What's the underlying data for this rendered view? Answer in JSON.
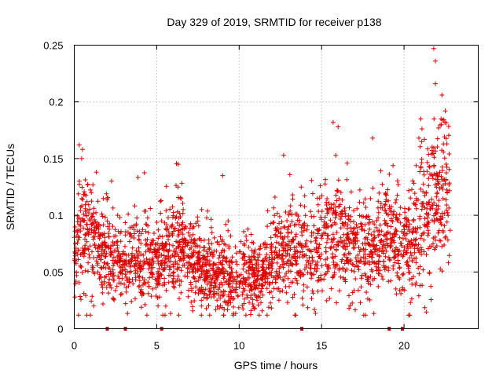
{
  "chart_data": {
    "type": "scatter",
    "title": "Day 329 of 2019, SRMTID for receiver p138",
    "xlabel": "GPS time / hours",
    "ylabel": "SRMTID / TECUs",
    "xlim": [
      0,
      24.5
    ],
    "ylim": [
      0,
      0.25
    ],
    "x_ticks": [
      {
        "value": 0,
        "label": "0"
      },
      {
        "value": 5,
        "label": "5"
      },
      {
        "value": 10,
        "label": "10"
      },
      {
        "value": 15,
        "label": "15"
      },
      {
        "value": 20,
        "label": "20"
      }
    ],
    "y_ticks": [
      {
        "value": 0,
        "label": "0"
      },
      {
        "value": 0.05,
        "label": "0.05"
      },
      {
        "value": 0.1,
        "label": "0.1"
      },
      {
        "value": 0.15,
        "label": "0.15"
      },
      {
        "value": 0.2,
        "label": "0.2"
      },
      {
        "value": 0.25,
        "label": "0.25"
      }
    ],
    "grid": true,
    "marker": "+",
    "color": "#dd0000",
    "data_span_hours": [
      0,
      22.8
    ],
    "baseline_profile": [
      {
        "x": 0.0,
        "y": 0.065
      },
      {
        "x": 0.5,
        "y": 0.085
      },
      {
        "x": 1.0,
        "y": 0.08
      },
      {
        "x": 1.5,
        "y": 0.075
      },
      {
        "x": 2.0,
        "y": 0.065
      },
      {
        "x": 2.5,
        "y": 0.058
      },
      {
        "x": 3.0,
        "y": 0.055
      },
      {
        "x": 3.5,
        "y": 0.06
      },
      {
        "x": 4.0,
        "y": 0.058
      },
      {
        "x": 5.0,
        "y": 0.06
      },
      {
        "x": 6.0,
        "y": 0.065
      },
      {
        "x": 6.5,
        "y": 0.075
      },
      {
        "x": 7.0,
        "y": 0.06
      },
      {
        "x": 8.0,
        "y": 0.048
      },
      {
        "x": 9.0,
        "y": 0.045
      },
      {
        "x": 10.0,
        "y": 0.042
      },
      {
        "x": 11.0,
        "y": 0.045
      },
      {
        "x": 12.0,
        "y": 0.055
      },
      {
        "x": 13.0,
        "y": 0.068
      },
      {
        "x": 14.0,
        "y": 0.065
      },
      {
        "x": 15.0,
        "y": 0.072
      },
      {
        "x": 16.0,
        "y": 0.085
      },
      {
        "x": 17.0,
        "y": 0.07
      },
      {
        "x": 18.0,
        "y": 0.07
      },
      {
        "x": 19.0,
        "y": 0.078
      },
      {
        "x": 20.0,
        "y": 0.07
      },
      {
        "x": 21.0,
        "y": 0.09
      },
      {
        "x": 22.0,
        "y": 0.11
      },
      {
        "x": 22.8,
        "y": 0.1
      }
    ],
    "notable_points": [
      {
        "x": 0.3,
        "y": 0.162
      },
      {
        "x": 0.5,
        "y": 0.158
      },
      {
        "x": 6.3,
        "y": 0.145
      },
      {
        "x": 9.0,
        "y": 0.135
      },
      {
        "x": 12.7,
        "y": 0.153
      },
      {
        "x": 15.7,
        "y": 0.182
      },
      {
        "x": 16.0,
        "y": 0.178
      },
      {
        "x": 18.1,
        "y": 0.168
      },
      {
        "x": 20.9,
        "y": 0.168
      },
      {
        "x": 21.8,
        "y": 0.247
      },
      {
        "x": 21.9,
        "y": 0.236
      },
      {
        "x": 21.9,
        "y": 0.216
      },
      {
        "x": 22.3,
        "y": 0.206
      },
      {
        "x": 22.5,
        "y": 0.192
      },
      {
        "x": 22.6,
        "y": 0.163
      }
    ],
    "baseline_markers_hours": [
      2.0,
      3.1,
      5.3,
      13.8,
      19.1,
      19.9
    ]
  }
}
